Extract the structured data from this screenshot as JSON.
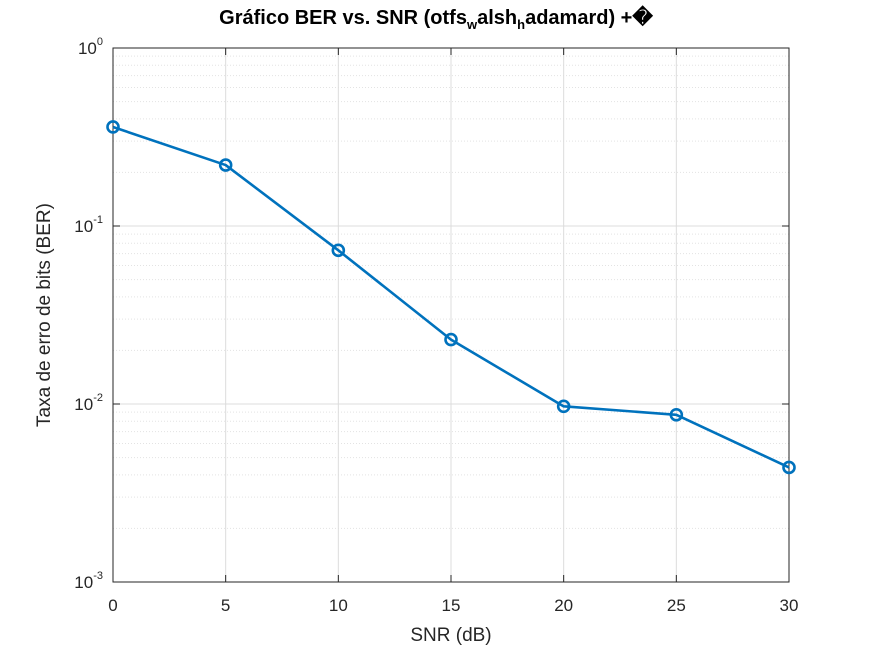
{
  "chart_data": {
    "type": "line",
    "title": "Gráfico BER vs. SNR (otfs",
    "title_sub1": "w",
    "title_mid": "alsh",
    "title_sub2": "h",
    "title_end": "adamard) +�",
    "xlabel": "SNR (dB)",
    "ylabel": "Taxa de erro de bits (BER)",
    "xlim": [
      0,
      30
    ],
    "ylim": [
      0.001,
      1
    ],
    "y_scale": "log",
    "grid": true,
    "x_ticks": [
      0,
      5,
      10,
      15,
      20,
      25,
      30
    ],
    "x_tick_labels": [
      "0",
      "5",
      "10",
      "15",
      "20",
      "25",
      "30"
    ],
    "y_ticks": [
      {
        "value": 1,
        "base": "10",
        "exp": "0"
      },
      {
        "value": 0.1,
        "base": "10",
        "exp": "-1"
      },
      {
        "value": 0.01,
        "base": "10",
        "exp": "-2"
      },
      {
        "value": 0.001,
        "base": "10",
        "exp": "-3"
      }
    ],
    "series": [
      {
        "x": [
          0,
          5,
          10,
          15,
          20,
          25,
          30
        ],
        "values": [
          0.36,
          0.22,
          0.073,
          0.023,
          0.0097,
          0.0087,
          0.0044
        ],
        "color": "#0072BD",
        "marker": "circle"
      }
    ]
  }
}
